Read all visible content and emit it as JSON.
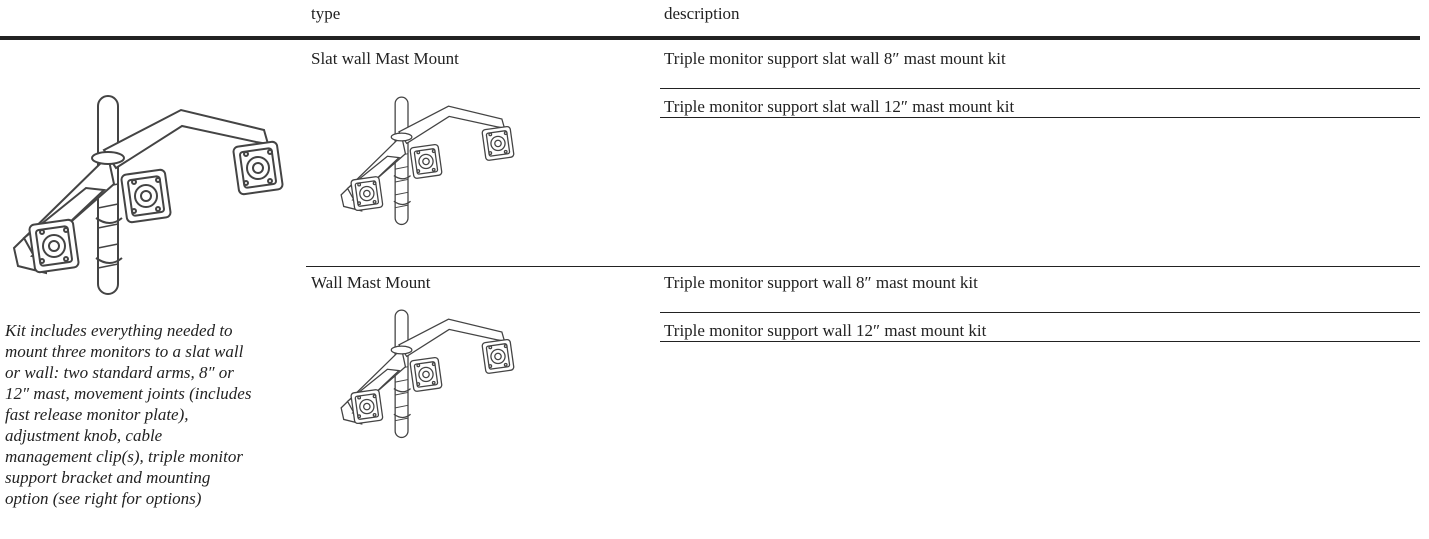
{
  "header": {
    "type": "type",
    "description": "description"
  },
  "rows": [
    {
      "type": "Slat wall Mast Mount",
      "items": [
        "Triple monitor support slat wall 8″ mast mount kit",
        "Triple monitor support slat wall 12″ mast mount kit"
      ]
    },
    {
      "type": "Wall Mast Mount",
      "items": [
        "Triple monitor support wall 8″ mast mount kit",
        "Triple monitor support wall 12″ mast mount kit"
      ]
    }
  ],
  "note": [
    "Kit includes everything needed to",
    "mount three monitors to a slat wall",
    "or wall: two standard arms, 8″ or",
    "12″ mast, movement joints (includes",
    "fast release monitor plate),",
    "adjustment knob, cable",
    "management clip(s), triple monitor",
    "support bracket and mounting",
    "option (see right for options)"
  ]
}
